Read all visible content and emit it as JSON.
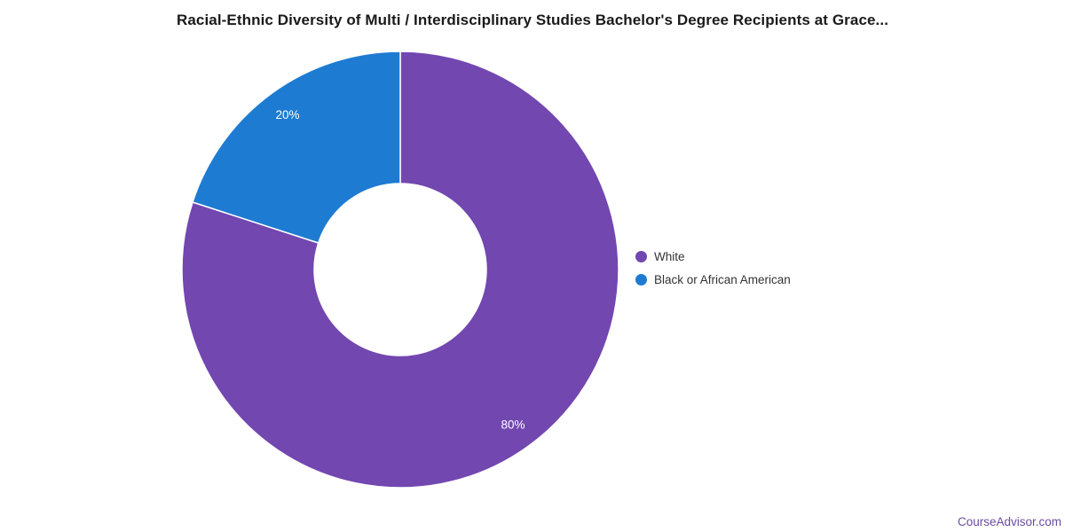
{
  "chart_data": {
    "type": "pie",
    "subtype": "donut",
    "title": "Racial-Ethnic Diversity of Multi / Interdisciplinary Studies Bachelor's Degree Recipients at Grace...",
    "series": [
      {
        "name": "White",
        "value": 80,
        "label": "80%",
        "color": "#7247b0"
      },
      {
        "name": "Black or African American",
        "value": 20,
        "label": "20%",
        "color": "#1e7bd2"
      }
    ],
    "start_angle_deg": 0,
    "direction": "clockwise",
    "legend_position": "right",
    "slice_border_color": "#ffffff"
  },
  "watermark": {
    "text": "CourseAdvisor.com",
    "color": "#6a4c9f"
  }
}
